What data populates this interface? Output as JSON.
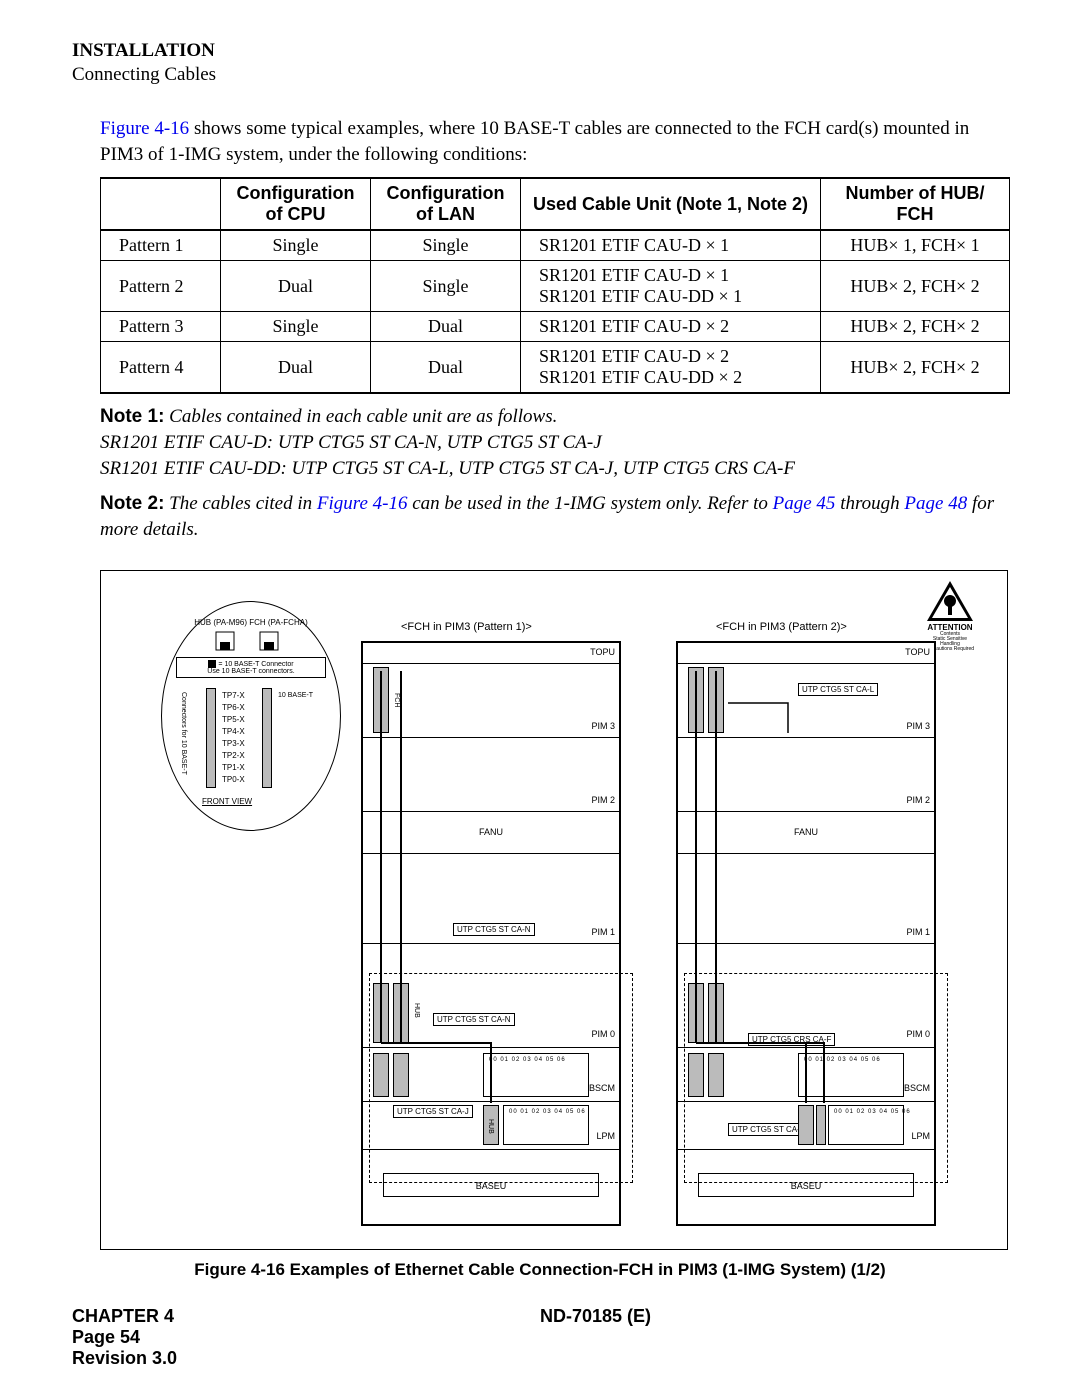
{
  "header": {
    "title": "INSTALLATION",
    "subtitle": "Connecting Cables"
  },
  "intro": {
    "figref": "Figure 4-16",
    "text_after_ref": " shows some typical examples, where 10 BASE-T cables are connected to the FCH card(s) mounted in PIM3 of 1-IMG system, under the following conditions:"
  },
  "table": {
    "headers": [
      "",
      "Configuration of CPU",
      "Configuration of LAN",
      "Used Cable Unit (Note 1, Note 2)",
      "Number of  HUB/ FCH"
    ],
    "rows": [
      {
        "p": "Pattern 1",
        "cpu": "Single",
        "lan": "Single",
        "cable": "SR1201 ETIF CAU-D × 1",
        "hub": "HUB× 1, FCH× 1"
      },
      {
        "p": "Pattern 2",
        "cpu": "Dual",
        "lan": "Single",
        "cable": "SR1201 ETIF CAU-D × 1\nSR1201 ETIF CAU-DD × 1",
        "hub": "HUB× 2, FCH× 2"
      },
      {
        "p": "Pattern 3",
        "cpu": "Single",
        "lan": "Dual",
        "cable": "SR1201 ETIF CAU-D × 2",
        "hub": "HUB× 2, FCH× 2"
      },
      {
        "p": "Pattern 4",
        "cpu": "Dual",
        "lan": "Dual",
        "cable": "SR1201 ETIF CAU-D × 2\nSR1201 ETIF CAU-DD × 2",
        "hub": "HUB× 2, FCH× 2"
      }
    ]
  },
  "note1": {
    "label": "Note 1:",
    "line1": "Cables contained in each cable unit are as follows.",
    "line2": "SR1201 ETIF CAU-D: UTP CTG5 ST CA-N, UTP CTG5 ST CA-J",
    "line3": "SR1201 ETIF CAU-DD: UTP CTG5 ST CA-L, UTP CTG5 ST CA-J, UTP CTG5 CRS CA-F"
  },
  "note2": {
    "label": "Note 2:",
    "pre": "The cables cited in ",
    "figref": "Figure 4-16",
    "mid": " can be used in the 1-IMG system only. Refer to ",
    "p45": "Page 45",
    "thru": " through ",
    "p48": "Page 48",
    "post": " for more details."
  },
  "figure": {
    "caption": "Figure 4-16    Examples of Ethernet Cable Connection-FCH in PIM3 (1-IMG System) (1/2)",
    "attention": "ATTENTION",
    "rack1_title": "<FCH in PIM3 (Pattern 1)>",
    "rack2_title": "<FCH in PIM3 (Pattern 2)>",
    "hub_top": "HUB (PA-M96) FCH (PA-FCHA)",
    "hub_desc1": "= 10  BASE-T Connector",
    "hub_desc2": "Use 10 BASE-T connectors.",
    "hub_front": "FRONT VIEW",
    "tp_labels": [
      "TP7-X",
      "TP6-X",
      "TP5-X",
      "TP4-X",
      "TP3-X",
      "TP2-X",
      "TP1-X",
      "TP0-X"
    ],
    "base_t": "10 BASE-T",
    "conn_side": "Connectors for 10 BASE-T",
    "shelves": {
      "topu": "TOPU",
      "pim3": "PIM 3",
      "pim2": "PIM 2",
      "fanu": "FANU",
      "pim1": "PIM 1",
      "pim0": "PIM 0",
      "bscm": "BSCM",
      "lpm": "LPM",
      "baseu": "BASEU"
    },
    "cables": {
      "ca_n": "UTP CTG5 ST CA-N",
      "ca_j": "UTP CTG5 ST CA-J",
      "ca_l": "UTP CTG5 ST CA-L",
      "crs_f": "UTP CTG5 CRS CA-F"
    },
    "slot_nums": "00 01 02 03 04 05 06"
  },
  "footer": {
    "chapter": "CHAPTER 4",
    "page": "Page 54",
    "rev": "Revision 3.0",
    "doc": "ND-70185 (E)"
  },
  "colors": {
    "link": "#0000ee",
    "text": "#000000",
    "bg": "#ffffff",
    "gray": "#bbbbbb"
  }
}
